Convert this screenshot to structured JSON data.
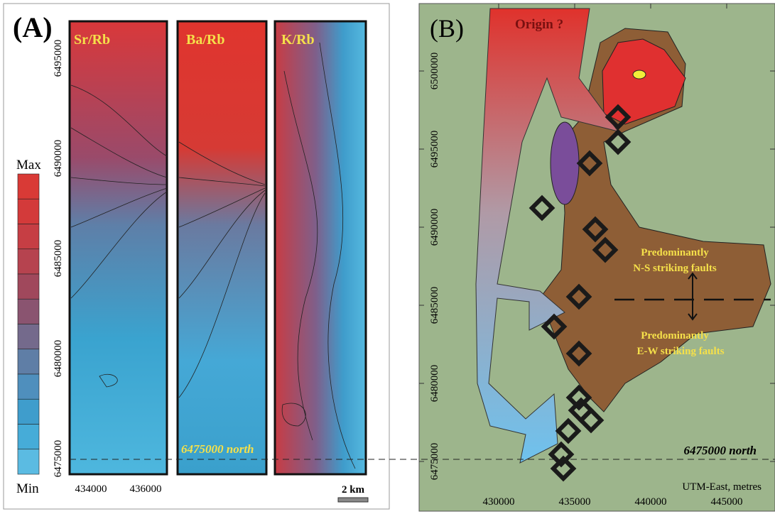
{
  "panel_a": {
    "label": "(A)",
    "strips": [
      "Sr/Rb",
      "Ba/Rb",
      "K/Rb"
    ],
    "y_ticks": [
      6495000,
      6490000,
      6485000,
      6480000,
      6475000
    ],
    "x_ticks": [
      434000,
      436000
    ],
    "legend_max": "Max",
    "legend_min": "Min",
    "reference_label": "6475000 north",
    "scale_bar": "2 km"
  },
  "panel_b": {
    "label": "(B)",
    "origin": "Origin ?",
    "y_ticks": [
      6500000,
      6495000,
      6490000,
      6485000,
      6480000,
      6475000
    ],
    "x_ticks": [
      430000,
      435000,
      440000,
      445000
    ],
    "x_axis_label": "UTM-East, metres",
    "upper_zone": [
      "Predominantly",
      "N-S striking faults"
    ],
    "lower_zone": [
      "Predominantly",
      "E-W striking faults"
    ],
    "reference_label": "6475000 north"
  }
}
